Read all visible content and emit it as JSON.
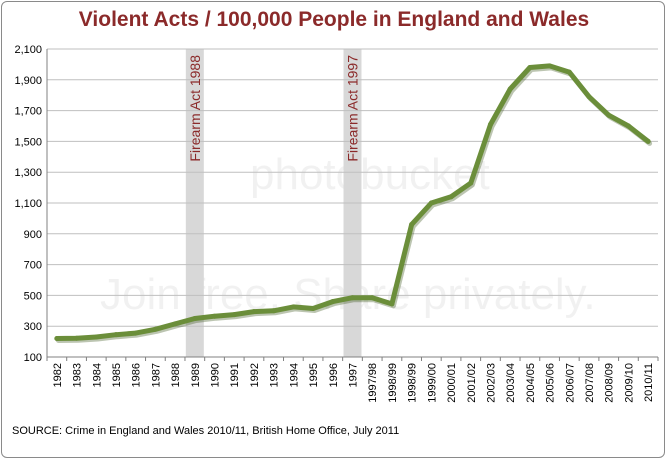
{
  "chart_data": {
    "type": "line",
    "title": "Violent Acts / 100,000 People in England and Wales",
    "xlabel": "",
    "ylabel": "",
    "ylim": [
      100,
      2100
    ],
    "yticks": [
      "100",
      "300",
      "500",
      "700",
      "900",
      "1,100",
      "1,300",
      "1,500",
      "1,700",
      "1,900",
      "2,100"
    ],
    "grid": true,
    "legend": "none",
    "line_color": "#6b8e3a",
    "categories": [
      "1982",
      "1983",
      "1984",
      "1985",
      "1986",
      "1987",
      "1988",
      "1989",
      "1990",
      "1991",
      "1992",
      "1993",
      "1994",
      "1995",
      "1996",
      "1997",
      "1997/98",
      "1998/99",
      "1998/99",
      "1999/00",
      "2000/01",
      "2001/02",
      "2002/03",
      "2003/04",
      "2004/05",
      "2005/06",
      "2006/07",
      "2007/08",
      "2008/09",
      "2009/10",
      "2010/11"
    ],
    "values": [
      220,
      222,
      230,
      245,
      255,
      280,
      315,
      350,
      365,
      375,
      395,
      400,
      425,
      415,
      460,
      485,
      485,
      445,
      960,
      1100,
      1140,
      1230,
      1610,
      1840,
      1980,
      1990,
      1950,
      1790,
      1670,
      1600,
      1500
    ],
    "annotations": [
      {
        "label": "Firearm Act 1988",
        "at_category_index": 7
      },
      {
        "label": "Firearm Act 1997",
        "at_category_index": 15
      }
    ]
  },
  "source": "SOURCE: Crime in England and Wales 2010/11, British Home Office, July 2011",
  "watermarks": {
    "logo": "photobucket",
    "tagline": "Join free. Share privately."
  }
}
